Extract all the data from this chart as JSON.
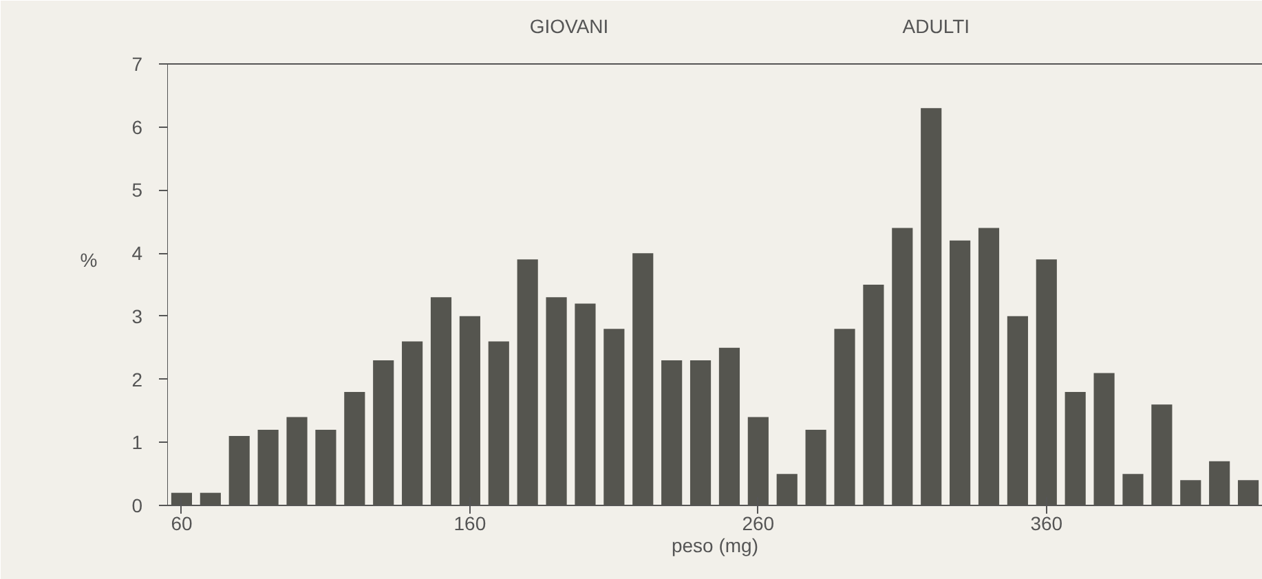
{
  "chart_data": {
    "type": "histogram",
    "xlabel": "peso (mg)",
    "ylabel": "%",
    "bins": [
      55,
      65,
      75,
      85,
      95,
      105,
      115,
      125,
      135,
      145,
      155,
      165,
      175,
      185,
      195,
      205,
      215,
      225,
      235,
      245,
      255,
      265,
      275,
      285,
      295,
      305,
      315,
      325,
      335,
      345,
      355,
      365,
      375,
      385,
      395,
      405,
      415,
      425,
      435
    ],
    "values": [
      0.2,
      0.2,
      1.1,
      1.2,
      1.4,
      1.2,
      1.8,
      2.3,
      2.6,
      3.3,
      3.0,
      2.6,
      3.9,
      3.3,
      3.2,
      2.8,
      4.0,
      2.3,
      2.3,
      2.5,
      1.4,
      0.5,
      1.2,
      2.8,
      3.5,
      4.4,
      6.3,
      4.2,
      4.4,
      3.0,
      3.9,
      1.8,
      2.1,
      0.5,
      1.6,
      0.4,
      0.7,
      0.4
    ],
    "color": "#55554f",
    "xlim": [
      55,
      435
    ],
    "xticks": [
      60,
      160,
      260,
      360
    ],
    "ylim": [
      0,
      7
    ],
    "yticks": [
      0,
      1,
      2,
      3,
      4,
      5,
      6,
      7
    ],
    "grid": false,
    "annotations": [
      "GIOVANI",
      "ADULTI"
    ]
  }
}
